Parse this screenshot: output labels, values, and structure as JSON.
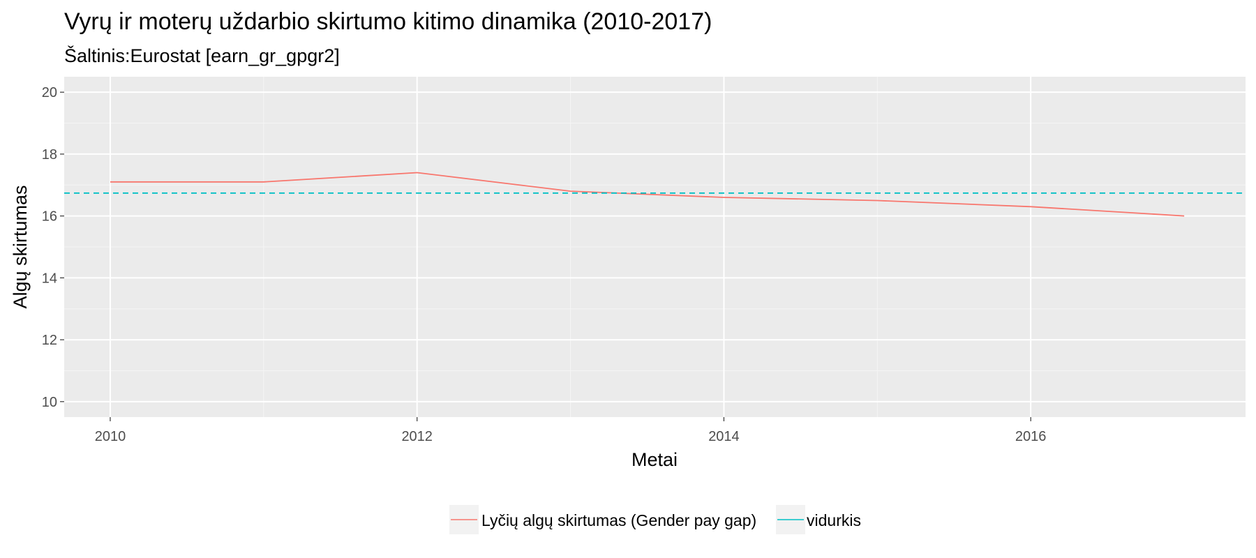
{
  "chart_data": {
    "type": "line",
    "title": "Vyrų ir moterų uždarbio skirtumo kitimo dinamika (2010-2017)",
    "subtitle": "Šaltinis:Eurostat [earn_gr_gpgr2]",
    "xlabel": "Metai",
    "ylabel": "Algų skirtumas",
    "xlim": [
      2009.7,
      2017.4
    ],
    "ylim": [
      9.5,
      20.5
    ],
    "x_ticks": [
      2010,
      2012,
      2014,
      2016
    ],
    "y_ticks": [
      10,
      12,
      14,
      16,
      18,
      20
    ],
    "grid": true,
    "legend_position": "bottom",
    "series": [
      {
        "name": "Lyčių algų skirtumas (Gender pay gap)",
        "color": "#f8766d",
        "style": "solid",
        "x": [
          2010,
          2011,
          2012,
          2013,
          2014,
          2015,
          2016,
          2017
        ],
        "values": [
          17.1,
          17.1,
          17.4,
          16.8,
          16.6,
          16.5,
          16.3,
          16.0
        ]
      },
      {
        "name": "vidurkis",
        "color": "#00bfc4",
        "style": "dashed",
        "hline": 16.74
      }
    ]
  }
}
